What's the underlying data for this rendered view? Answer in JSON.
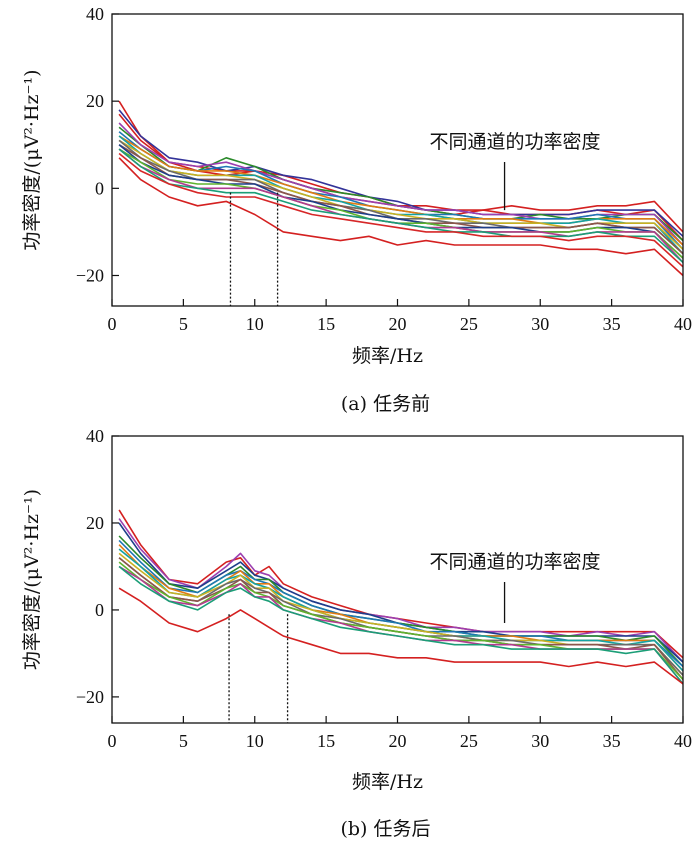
{
  "chart_data": [
    {
      "type": "line",
      "caption": "(a) 任务前",
      "xlabel": "频率/Hz",
      "ylabel": "功率密度/(μV²·Hz⁻¹)",
      "xlim": [
        0,
        40
      ],
      "ylim": [
        -27,
        40
      ],
      "xticks": [
        0,
        5,
        10,
        15,
        20,
        25,
        30,
        35,
        40
      ],
      "yticks": [
        -20,
        0,
        20,
        40
      ],
      "annotation": "不同通道的功率密度",
      "annotation_point": [
        27.5,
        -5
      ],
      "markers": [
        8.3,
        11.6
      ],
      "grid": false,
      "x": [
        0.5,
        2,
        4,
        6,
        8,
        10,
        12,
        14,
        16,
        18,
        20,
        22,
        24,
        26,
        28,
        30,
        32,
        34,
        36,
        38,
        40
      ],
      "series": [
        {
          "color": "#d42020",
          "values": [
            20,
            12,
            6,
            4,
            3,
            4,
            2,
            0,
            -2,
            -3,
            -4,
            -4,
            -5,
            -5,
            -4,
            -5,
            -5,
            -4,
            -4,
            -3,
            -10
          ]
        },
        {
          "color": "#d42020",
          "values": [
            17,
            11,
            6,
            5,
            4,
            4,
            3,
            1,
            -1,
            -2,
            -4,
            -5,
            -6,
            -5,
            -6,
            -6,
            -6,
            -5,
            -6,
            -5,
            -12
          ]
        },
        {
          "color": "#333399",
          "values": [
            18,
            12,
            7,
            6,
            4,
            5,
            3,
            2,
            0,
            -2,
            -3,
            -5,
            -5,
            -6,
            -6,
            -6,
            -6,
            -5,
            -5,
            -5,
            -11
          ]
        },
        {
          "color": "#2a8a2a",
          "values": [
            14,
            10,
            5,
            4,
            7,
            5,
            2,
            0,
            -1,
            -2,
            -4,
            -5,
            -6,
            -7,
            -7,
            -6,
            -7,
            -7,
            -6,
            -6,
            -12
          ]
        },
        {
          "color": "#9b3fb0",
          "values": [
            15,
            10,
            6,
            5,
            6,
            4,
            2,
            0,
            -2,
            -3,
            -4,
            -5,
            -5,
            -6,
            -6,
            -7,
            -7,
            -6,
            -6,
            -6,
            -13
          ]
        },
        {
          "color": "#1f77b4",
          "values": [
            13,
            9,
            5,
            4,
            5,
            4,
            1,
            -1,
            -2,
            -4,
            -5,
            -6,
            -6,
            -7,
            -7,
            -7,
            -7,
            -6,
            -7,
            -7,
            -14
          ]
        },
        {
          "color": "#e07b12",
          "values": [
            12,
            9,
            5,
            4,
            4,
            3,
            1,
            -1,
            -3,
            -4,
            -5,
            -6,
            -7,
            -7,
            -7,
            -8,
            -8,
            -7,
            -7,
            -7,
            -13
          ]
        },
        {
          "color": "#14a3a3",
          "values": [
            12,
            8,
            4,
            3,
            3,
            3,
            0,
            -2,
            -3,
            -5,
            -6,
            -6,
            -7,
            -8,
            -8,
            -8,
            -8,
            -7,
            -8,
            -8,
            -15
          ]
        },
        {
          "color": "#c9b022",
          "values": [
            11,
            8,
            4,
            3,
            3,
            2,
            0,
            -2,
            -4,
            -5,
            -6,
            -7,
            -7,
            -8,
            -8,
            -8,
            -9,
            -8,
            -8,
            -8,
            -14
          ]
        },
        {
          "color": "#6a6a6a",
          "values": [
            11,
            7,
            4,
            2,
            2,
            2,
            -1,
            -3,
            -4,
            -5,
            -7,
            -7,
            -8,
            -8,
            -9,
            -9,
            -9,
            -8,
            -9,
            -9,
            -15
          ]
        },
        {
          "color": "#8c564b",
          "values": [
            10,
            7,
            3,
            2,
            2,
            1,
            -1,
            -3,
            -4,
            -6,
            -7,
            -8,
            -8,
            -9,
            -9,
            -9,
            -9,
            -8,
            -9,
            -9,
            -15
          ]
        },
        {
          "color": "#1d3f8a",
          "values": [
            10,
            6,
            3,
            2,
            1,
            1,
            -2,
            -3,
            -5,
            -6,
            -7,
            -8,
            -9,
            -9,
            -9,
            -10,
            -10,
            -9,
            -9,
            -10,
            -16
          ]
        },
        {
          "color": "#5fb32e",
          "values": [
            9,
            6,
            2,
            1,
            1,
            0,
            -2,
            -4,
            -5,
            -7,
            -8,
            -8,
            -9,
            -10,
            -10,
            -10,
            -10,
            -9,
            -10,
            -10,
            -16
          ]
        },
        {
          "color": "#b23a8f",
          "values": [
            9,
            5,
            2,
            0,
            0,
            0,
            -2,
            -4,
            -6,
            -7,
            -8,
            -9,
            -9,
            -10,
            -10,
            -10,
            -11,
            -10,
            -10,
            -10,
            -17
          ]
        },
        {
          "color": "#1b9e77",
          "values": [
            9,
            5,
            1,
            0,
            -1,
            -1,
            -3,
            -5,
            -6,
            -7,
            -8,
            -9,
            -10,
            -10,
            -11,
            -11,
            -11,
            -10,
            -11,
            -11,
            -17
          ]
        },
        {
          "color": "#d62728",
          "values": [
            8,
            4,
            1,
            -1,
            -2,
            -2,
            -4,
            -6,
            -7,
            -8,
            -9,
            -10,
            -10,
            -11,
            -11,
            -11,
            -12,
            -11,
            -11,
            -12,
            -18
          ]
        },
        {
          "color": "#d42020",
          "values": [
            7,
            2,
            -2,
            -4,
            -3,
            -6,
            -10,
            -11,
            -12,
            -11,
            -13,
            -12,
            -13,
            -13,
            -13,
            -13,
            -14,
            -14,
            -15,
            -14,
            -20
          ]
        }
      ]
    },
    {
      "type": "line",
      "caption": "(b) 任务后",
      "xlabel": "频率/Hz",
      "ylabel": "功率密度/(μV²·Hz⁻¹)",
      "xlim": [
        0,
        40
      ],
      "ylim": [
        -26,
        40
      ],
      "xticks": [
        0,
        5,
        10,
        15,
        20,
        25,
        30,
        35,
        40
      ],
      "yticks": [
        -20,
        0,
        20,
        40
      ],
      "annotation": "不同通道的功率密度",
      "annotation_point": [
        27.5,
        -3
      ],
      "markers": [
        8.2,
        12.3
      ],
      "grid": false,
      "x": [
        0.5,
        2,
        4,
        6,
        8,
        9,
        10,
        11,
        12,
        14,
        16,
        18,
        20,
        22,
        24,
        26,
        28,
        30,
        32,
        34,
        36,
        38,
        40
      ],
      "series": [
        {
          "color": "#d42020",
          "values": [
            23,
            15,
            7,
            6,
            11,
            12,
            8,
            10,
            6,
            3,
            1,
            -1,
            -2,
            -3,
            -4,
            -5,
            -5,
            -5,
            -5,
            -5,
            -5,
            -5,
            -11
          ]
        },
        {
          "color": "#9b3fb0",
          "values": [
            21,
            14,
            7,
            5,
            10,
            13,
            9,
            8,
            5,
            2,
            0,
            -1,
            -2,
            -4,
            -4,
            -5,
            -5,
            -5,
            -6,
            -5,
            -6,
            -5,
            -12
          ]
        },
        {
          "color": "#1d3f8a",
          "values": [
            20,
            13,
            6,
            5,
            9,
            11,
            8,
            7,
            5,
            2,
            0,
            -1,
            -3,
            -4,
            -5,
            -5,
            -6,
            -6,
            -6,
            -6,
            -6,
            -6,
            -12
          ]
        },
        {
          "color": "#2a8a2a",
          "values": [
            17,
            12,
            6,
            4,
            8,
            10,
            7,
            7,
            4,
            1,
            -1,
            -2,
            -3,
            -4,
            -5,
            -6,
            -6,
            -6,
            -6,
            -6,
            -7,
            -6,
            -13
          ]
        },
        {
          "color": "#1f77b4",
          "values": [
            16,
            11,
            5,
            4,
            8,
            9,
            7,
            6,
            4,
            1,
            -1,
            -2,
            -3,
            -5,
            -5,
            -6,
            -6,
            -6,
            -7,
            -7,
            -7,
            -7,
            -13
          ]
        },
        {
          "color": "#e07b12",
          "values": [
            15,
            10,
            5,
            3,
            7,
            9,
            6,
            6,
            3,
            0,
            -1,
            -3,
            -4,
            -5,
            -6,
            -6,
            -6,
            -7,
            -7,
            -7,
            -7,
            -7,
            -14
          ]
        },
        {
          "color": "#14a3a3",
          "values": [
            14,
            10,
            4,
            3,
            7,
            8,
            6,
            5,
            3,
            0,
            -2,
            -3,
            -4,
            -5,
            -6,
            -6,
            -7,
            -7,
            -7,
            -7,
            -8,
            -7,
            -14
          ]
        },
        {
          "color": "#c9b022",
          "values": [
            13,
            9,
            4,
            3,
            6,
            8,
            5,
            5,
            2,
            0,
            -2,
            -3,
            -4,
            -5,
            -6,
            -7,
            -7,
            -7,
            -8,
            -8,
            -8,
            -8,
            -15
          ]
        },
        {
          "color": "#6a6a6a",
          "values": [
            12,
            8,
            3,
            2,
            6,
            7,
            5,
            4,
            2,
            -1,
            -2,
            -4,
            -5,
            -6,
            -6,
            -7,
            -7,
            -8,
            -8,
            -8,
            -8,
            -8,
            -15
          ]
        },
        {
          "color": "#8c564b",
          "values": [
            12,
            8,
            3,
            2,
            5,
            7,
            4,
            4,
            1,
            -1,
            -3,
            -4,
            -5,
            -6,
            -7,
            -7,
            -8,
            -8,
            -8,
            -8,
            -9,
            -8,
            -16
          ]
        },
        {
          "color": "#5fb32e",
          "values": [
            11,
            7,
            3,
            1,
            5,
            6,
            4,
            3,
            1,
            -1,
            -3,
            -4,
            -5,
            -6,
            -7,
            -7,
            -8,
            -8,
            -9,
            -9,
            -9,
            -9,
            -16
          ]
        },
        {
          "color": "#b23a8f",
          "values": [
            10,
            7,
            2,
            1,
            4,
            6,
            3,
            3,
            0,
            -2,
            -3,
            -5,
            -6,
            -7,
            -7,
            -8,
            -8,
            -9,
            -9,
            -9,
            -9,
            -9,
            -17
          ]
        },
        {
          "color": "#1b9e77",
          "values": [
            10,
            6,
            2,
            0,
            4,
            5,
            3,
            2,
            0,
            -2,
            -4,
            -5,
            -6,
            -7,
            -8,
            -8,
            -9,
            -9,
            -9,
            -9,
            -10,
            -9,
            -17
          ]
        },
        {
          "color": "#d42020",
          "values": [
            5,
            2,
            -3,
            -5,
            -2,
            0,
            -2,
            -4,
            -6,
            -8,
            -10,
            -10,
            -11,
            -11,
            -12,
            -12,
            -12,
            -12,
            -13,
            -12,
            -13,
            -12,
            -17
          ]
        }
      ]
    }
  ]
}
